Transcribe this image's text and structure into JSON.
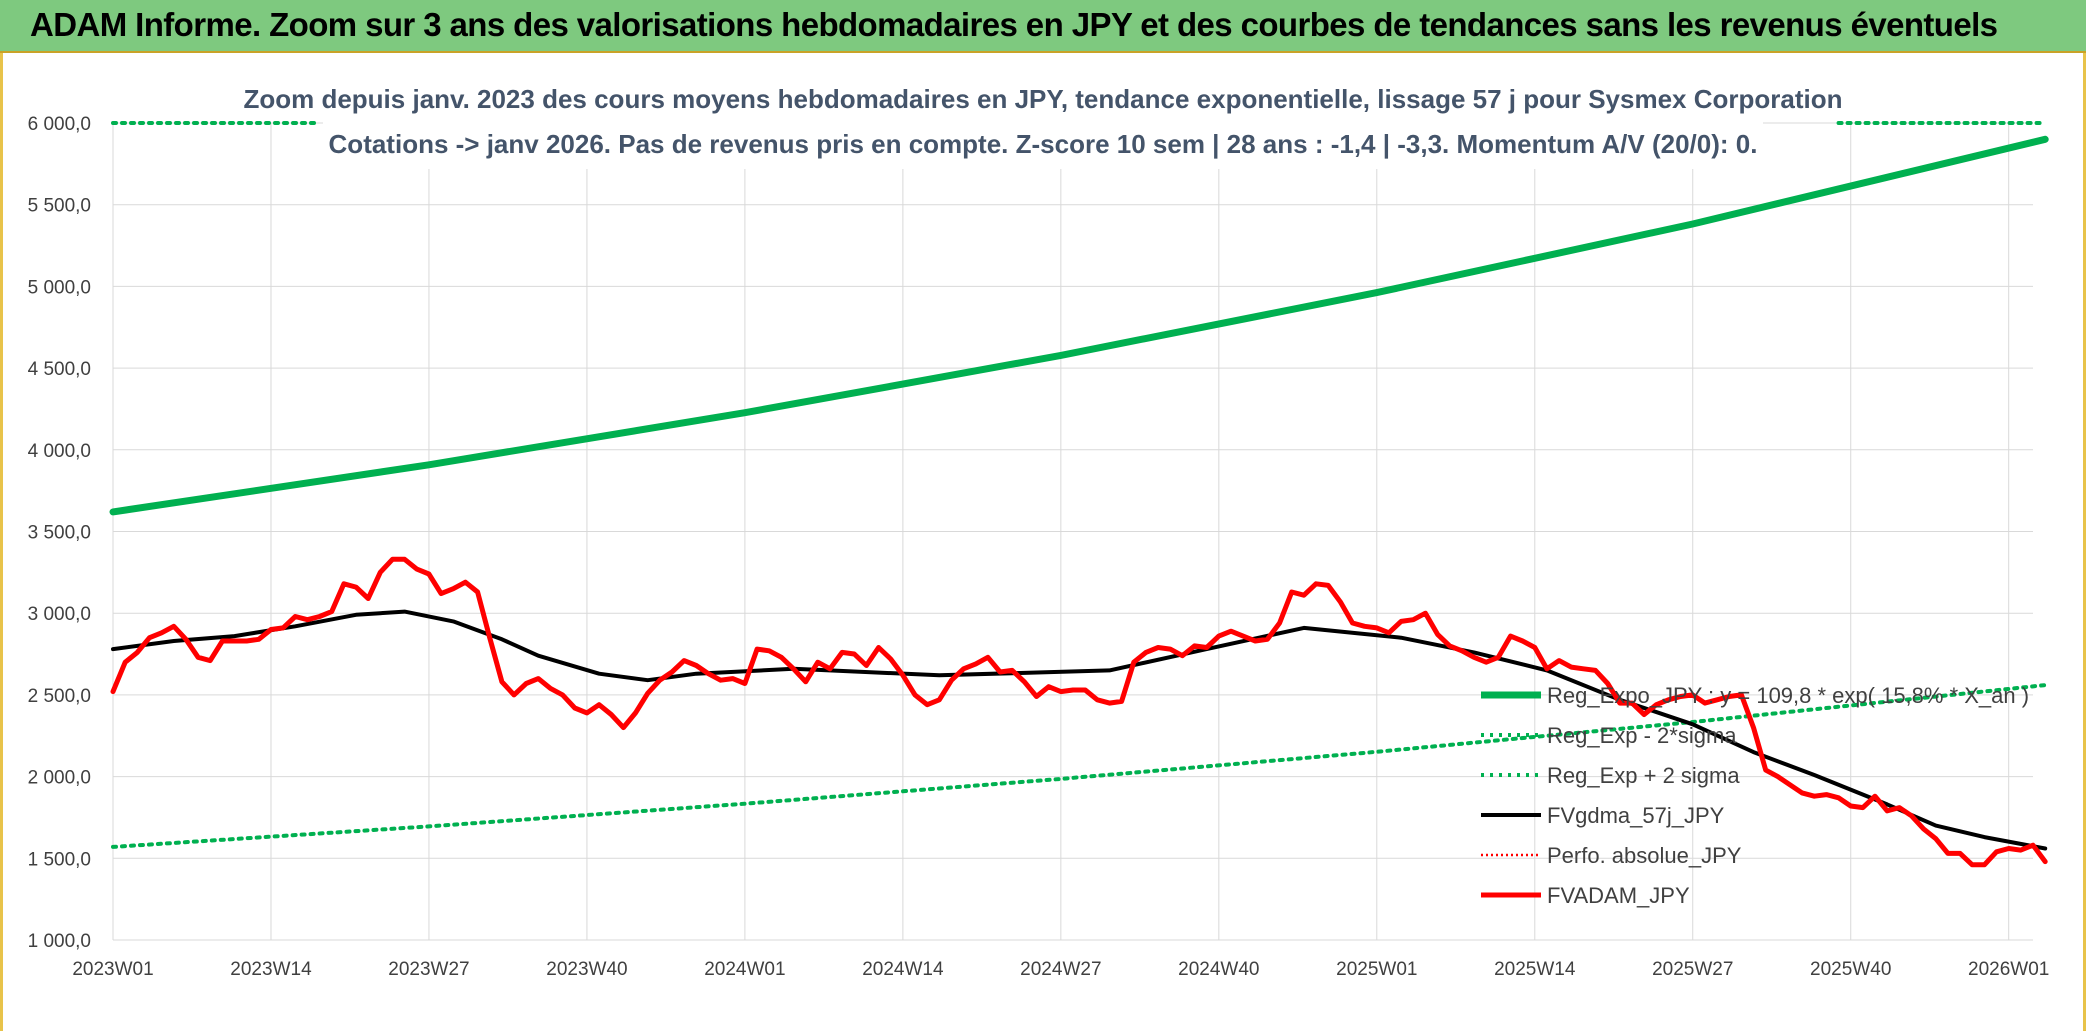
{
  "header": {
    "title": "ADAM Informe. Zoom sur 3 ans des valorisations hebdomadaires en JPY et des courbes de tendances sans les revenus éventuels"
  },
  "colors": {
    "banner": "#7ec97f",
    "reg_expo": "#00b050",
    "fvgdma": "#000000",
    "perfo": "#ff0000",
    "fvadam": "#ff0000",
    "grid": "#d9d9d9"
  },
  "chart_data": {
    "type": "line",
    "title_line1": "Zoom depuis janv. 2023 des cours moyens hebdomadaires en JPY, tendance exponentielle, lissage 57 j pour Sysmex Corporation",
    "title_line2": "Cotations -> janv 2026. Pas de revenus pris en compte. Z-score 10 sem | 28 ans : -1,4 | -3,3. Momentum A/V (20/0): 0.",
    "xlabel": "",
    "ylabel": "",
    "ylim": [
      1000,
      6000
    ],
    "yticks": [
      "1 000,0",
      "1 500,0",
      "2 000,0",
      "2 500,0",
      "3 000,0",
      "3 500,0",
      "4 000,0",
      "4 500,0",
      "5 000,0",
      "5 500,0",
      "6 000,0"
    ],
    "x_week_count": 159,
    "xticks": [
      {
        "week": 0,
        "label": "2023W01"
      },
      {
        "week": 13,
        "label": "2023W14"
      },
      {
        "week": 26,
        "label": "2023W27"
      },
      {
        "week": 39,
        "label": "2023W40"
      },
      {
        "week": 52,
        "label": "2024W01"
      },
      {
        "week": 65,
        "label": "2024W14"
      },
      {
        "week": 78,
        "label": "2024W27"
      },
      {
        "week": 91,
        "label": "2024W40"
      },
      {
        "week": 104,
        "label": "2025W01"
      },
      {
        "week": 117,
        "label": "2025W14"
      },
      {
        "week": 130,
        "label": "2025W27"
      },
      {
        "week": 143,
        "label": "2025W40"
      },
      {
        "week": 156,
        "label": "2026W01"
      }
    ],
    "legend_position": "right",
    "series": [
      {
        "name": "Reg_Expo_JPY : y = 109,8 * exp( 15,8% * X_an )",
        "style": "solid-thick",
        "points": [
          [
            0,
            3620
          ],
          [
            26,
            3908
          ],
          [
            52,
            4227
          ],
          [
            78,
            4578
          ],
          [
            104,
            4962
          ],
          [
            130,
            5382
          ],
          [
            159,
            5900
          ]
        ]
      },
      {
        "name": "Reg_Exp - 2*sigma",
        "style": "dotted",
        "points": [
          [
            0,
            1570
          ],
          [
            26,
            1695
          ],
          [
            52,
            1834
          ],
          [
            78,
            1986
          ],
          [
            104,
            2152
          ],
          [
            130,
            2334
          ],
          [
            159,
            2560
          ]
        ]
      },
      {
        "name": "Reg_Exp + 2 sigma",
        "style": "dotted",
        "points": [
          [
            0,
            6000
          ],
          [
            17,
            6000
          ]
        ]
      },
      {
        "name": "FVgdma_57j_JPY",
        "style": "solid",
        "points": [
          [
            0,
            2780
          ],
          [
            5,
            2830
          ],
          [
            10,
            2860
          ],
          [
            15,
            2920
          ],
          [
            20,
            2990
          ],
          [
            24,
            3010
          ],
          [
            28,
            2950
          ],
          [
            32,
            2840
          ],
          [
            35,
            2740
          ],
          [
            40,
            2630
          ],
          [
            44,
            2590
          ],
          [
            48,
            2630
          ],
          [
            56,
            2660
          ],
          [
            68,
            2620
          ],
          [
            82,
            2650
          ],
          [
            90,
            2780
          ],
          [
            98,
            2910
          ],
          [
            106,
            2850
          ],
          [
            112,
            2760
          ],
          [
            118,
            2650
          ],
          [
            124,
            2470
          ],
          [
            130,
            2320
          ],
          [
            135,
            2150
          ],
          [
            140,
            2010
          ],
          [
            146,
            1830
          ],
          [
            150,
            1700
          ],
          [
            154,
            1630
          ],
          [
            159,
            1560
          ]
        ]
      },
      {
        "name": "Perfo. absolue_JPY",
        "style": "dotted-thin",
        "points": []
      },
      {
        "name": "FVADAM_JPY",
        "style": "solid-thick",
        "points": [
          [
            0,
            2520
          ],
          [
            1,
            2700
          ],
          [
            2,
            2760
          ],
          [
            3,
            2850
          ],
          [
            4,
            2880
          ],
          [
            5,
            2920
          ],
          [
            6,
            2840
          ],
          [
            7,
            2730
          ],
          [
            8,
            2710
          ],
          [
            9,
            2830
          ],
          [
            10,
            2830
          ],
          [
            11,
            2830
          ],
          [
            12,
            2840
          ],
          [
            13,
            2900
          ],
          [
            14,
            2910
          ],
          [
            15,
            2980
          ],
          [
            16,
            2960
          ],
          [
            17,
            2980
          ],
          [
            18,
            3010
          ],
          [
            19,
            3180
          ],
          [
            20,
            3160
          ],
          [
            21,
            3090
          ],
          [
            22,
            3250
          ],
          [
            23,
            3330
          ],
          [
            24,
            3330
          ],
          [
            25,
            3270
          ],
          [
            26,
            3240
          ],
          [
            27,
            3120
          ],
          [
            28,
            3150
          ],
          [
            29,
            3190
          ],
          [
            30,
            3130
          ],
          [
            31,
            2850
          ],
          [
            32,
            2580
          ],
          [
            33,
            2500
          ],
          [
            34,
            2570
          ],
          [
            35,
            2600
          ],
          [
            36,
            2540
          ],
          [
            37,
            2500
          ],
          [
            38,
            2420
          ],
          [
            39,
            2390
          ],
          [
            40,
            2440
          ],
          [
            41,
            2380
          ],
          [
            42,
            2300
          ],
          [
            43,
            2390
          ],
          [
            44,
            2510
          ],
          [
            45,
            2590
          ],
          [
            46,
            2640
          ],
          [
            47,
            2710
          ],
          [
            48,
            2680
          ],
          [
            49,
            2630
          ],
          [
            50,
            2590
          ],
          [
            51,
            2600
          ],
          [
            52,
            2570
          ],
          [
            53,
            2780
          ],
          [
            54,
            2770
          ],
          [
            55,
            2730
          ],
          [
            56,
            2660
          ],
          [
            57,
            2580
          ],
          [
            58,
            2700
          ],
          [
            59,
            2660
          ],
          [
            60,
            2760
          ],
          [
            61,
            2750
          ],
          [
            62,
            2680
          ],
          [
            63,
            2790
          ],
          [
            64,
            2720
          ],
          [
            65,
            2620
          ],
          [
            66,
            2500
          ],
          [
            67,
            2440
          ],
          [
            68,
            2470
          ],
          [
            69,
            2590
          ],
          [
            70,
            2660
          ],
          [
            71,
            2690
          ],
          [
            72,
            2730
          ],
          [
            73,
            2640
          ],
          [
            74,
            2650
          ],
          [
            75,
            2580
          ],
          [
            76,
            2490
          ],
          [
            77,
            2550
          ],
          [
            78,
            2520
          ],
          [
            79,
            2530
          ],
          [
            80,
            2530
          ],
          [
            81,
            2470
          ],
          [
            82,
            2450
          ],
          [
            83,
            2460
          ],
          [
            84,
            2700
          ],
          [
            85,
            2760
          ],
          [
            86,
            2790
          ],
          [
            87,
            2780
          ],
          [
            88,
            2740
          ],
          [
            89,
            2800
          ],
          [
            90,
            2790
          ],
          [
            91,
            2860
          ],
          [
            92,
            2890
          ],
          [
            93,
            2860
          ],
          [
            94,
            2830
          ],
          [
            95,
            2840
          ],
          [
            96,
            2940
          ],
          [
            97,
            3130
          ],
          [
            98,
            3110
          ],
          [
            99,
            3180
          ],
          [
            100,
            3170
          ],
          [
            101,
            3070
          ],
          [
            102,
            2940
          ],
          [
            103,
            2920
          ],
          [
            104,
            2910
          ],
          [
            105,
            2880
          ],
          [
            106,
            2950
          ],
          [
            107,
            2960
          ],
          [
            108,
            3000
          ],
          [
            109,
            2870
          ],
          [
            110,
            2800
          ],
          [
            111,
            2770
          ],
          [
            112,
            2730
          ],
          [
            113,
            2700
          ],
          [
            114,
            2730
          ],
          [
            115,
            2860
          ],
          [
            116,
            2830
          ],
          [
            117,
            2790
          ],
          [
            118,
            2660
          ],
          [
            119,
            2710
          ],
          [
            120,
            2670
          ],
          [
            121,
            2660
          ],
          [
            122,
            2650
          ],
          [
            123,
            2570
          ],
          [
            124,
            2450
          ],
          [
            125,
            2450
          ],
          [
            126,
            2380
          ],
          [
            127,
            2440
          ],
          [
            128,
            2470
          ],
          [
            129,
            2490
          ],
          [
            130,
            2500
          ],
          [
            131,
            2450
          ],
          [
            132,
            2470
          ],
          [
            133,
            2490
          ],
          [
            134,
            2500
          ],
          [
            135,
            2300
          ],
          [
            136,
            2040
          ],
          [
            137,
            2000
          ],
          [
            138,
            1950
          ],
          [
            139,
            1900
          ],
          [
            140,
            1880
          ],
          [
            141,
            1890
          ],
          [
            142,
            1870
          ],
          [
            143,
            1820
          ],
          [
            144,
            1810
          ],
          [
            145,
            1880
          ],
          [
            146,
            1790
          ],
          [
            147,
            1810
          ],
          [
            148,
            1760
          ],
          [
            149,
            1680
          ],
          [
            150,
            1620
          ],
          [
            151,
            1530
          ],
          [
            152,
            1530
          ],
          [
            153,
            1460
          ],
          [
            154,
            1460
          ],
          [
            155,
            1540
          ],
          [
            156,
            1560
          ],
          [
            157,
            1550
          ],
          [
            158,
            1580
          ],
          [
            159,
            1480
          ]
        ]
      }
    ]
  }
}
